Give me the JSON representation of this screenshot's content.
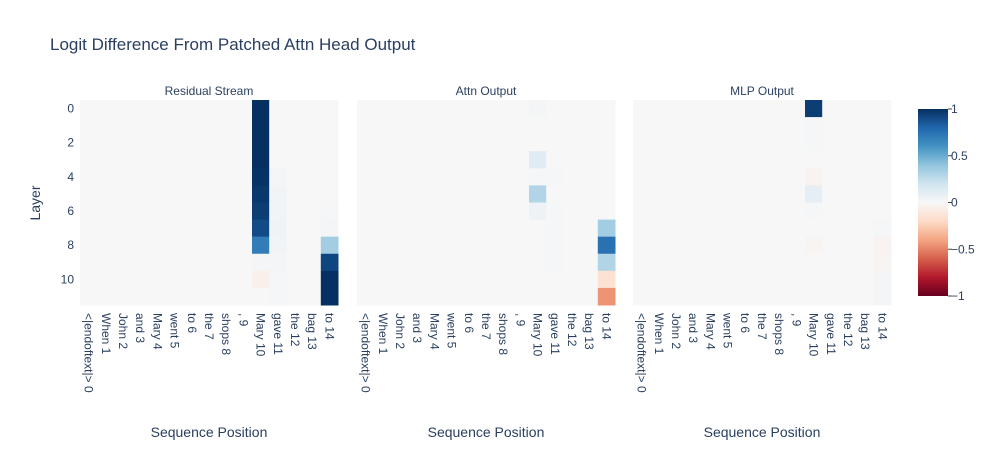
{
  "chart_data": {
    "type": "heatmap",
    "title": "Logit Difference From Patched Attn Head Output",
    "ylabel": "Layer",
    "y_ticks": [
      0,
      2,
      4,
      6,
      8,
      10
    ],
    "layers": [
      0,
      1,
      2,
      3,
      4,
      5,
      6,
      7,
      8,
      9,
      10,
      11
    ],
    "positions": [
      "<|endoftext|> 0",
      "When 1",
      "John 2",
      "and 3",
      "Mary 4",
      "went 5",
      "to 6",
      "the 7",
      "shops 8",
      ", 9",
      "Mary 10",
      "gave 11",
      "the 12",
      "bag 13",
      "to 14"
    ],
    "colorscale": {
      "name": "RdBu",
      "zmin": -1,
      "zmax": 1,
      "ticks": [
        1,
        0.5,
        0,
        -0.5,
        -1
      ],
      "tick_labels": [
        "1",
        "0.5",
        "0",
        "−0.5",
        "−1"
      ]
    },
    "panels": [
      {
        "title": "Residual Stream",
        "xlabel": "Sequence Position",
        "z": [
          [
            0,
            0,
            0,
            0,
            0,
            0,
            0,
            0,
            0,
            0,
            1,
            0,
            0,
            0,
            0
          ],
          [
            0,
            0,
            0,
            0,
            0,
            0,
            0,
            0,
            0,
            0,
            1,
            0,
            0,
            0,
            0
          ],
          [
            0,
            0,
            0,
            0,
            0,
            0,
            0,
            0,
            0,
            0,
            1,
            0,
            0,
            0,
            0
          ],
          [
            0,
            0,
            0,
            0,
            0,
            0,
            0,
            0,
            0,
            0,
            1,
            0,
            0,
            0,
            0
          ],
          [
            0,
            0,
            0,
            0,
            0,
            0,
            0,
            0,
            0,
            0,
            0.99,
            0.02,
            0,
            0,
            0
          ],
          [
            0,
            0,
            0,
            0,
            0,
            0,
            0,
            0,
            0,
            0,
            0.97,
            0.03,
            0,
            0,
            0
          ],
          [
            0,
            0,
            0,
            0,
            0,
            0,
            0,
            0,
            0,
            0,
            0.95,
            0.03,
            0,
            0,
            0.01
          ],
          [
            0,
            0,
            0,
            0,
            0,
            0,
            0,
            0,
            0,
            0,
            0.9,
            0.04,
            0,
            0,
            0.02
          ],
          [
            0,
            0,
            0,
            0,
            0,
            0,
            0,
            0,
            0,
            0,
            0.7,
            0.03,
            0,
            0,
            0.35
          ],
          [
            0,
            0,
            0,
            0,
            0,
            0,
            0,
            0,
            0,
            0,
            0.02,
            0.02,
            0,
            0,
            0.92
          ],
          [
            0,
            0,
            0,
            0,
            0,
            0,
            0,
            0,
            0,
            0,
            -0.05,
            0.01,
            0,
            0,
            1
          ],
          [
            0,
            0,
            0,
            0,
            0,
            0,
            0,
            0,
            0,
            0,
            0,
            0.01,
            0,
            0,
            1
          ]
        ]
      },
      {
        "title": "Attn Output",
        "xlabel": "Sequence Position",
        "z": [
          [
            0,
            0,
            0,
            0,
            0,
            0,
            0,
            0,
            0,
            0,
            0.02,
            0,
            0,
            0,
            0
          ],
          [
            0,
            0,
            0,
            0,
            0,
            0,
            0,
            0,
            0,
            0,
            0,
            0,
            0,
            0,
            0
          ],
          [
            0,
            0,
            0,
            0,
            0,
            0,
            0,
            0,
            0,
            0,
            0,
            0,
            0,
            0,
            0
          ],
          [
            0,
            0,
            0,
            0,
            0,
            0,
            0,
            0,
            0,
            0,
            0.12,
            0,
            0,
            0,
            0
          ],
          [
            0,
            0,
            0,
            0,
            0,
            0,
            0,
            0,
            0,
            0,
            0.01,
            0.01,
            0,
            0,
            0
          ],
          [
            0,
            0,
            0,
            0,
            0,
            0,
            0,
            0,
            0,
            0,
            0.3,
            0,
            0,
            0,
            0
          ],
          [
            0,
            0,
            0,
            0,
            0,
            0,
            0,
            0,
            0,
            0,
            0.06,
            0.01,
            0,
            0,
            0
          ],
          [
            0,
            0,
            0,
            0,
            0,
            0,
            0,
            0,
            0,
            0,
            0,
            0.01,
            0,
            0,
            0.35
          ],
          [
            0,
            0,
            0,
            0,
            0,
            0,
            0,
            0,
            0,
            0,
            0,
            0.01,
            0,
            0,
            0.75
          ],
          [
            0,
            0,
            0,
            0,
            0,
            0,
            0,
            0,
            0,
            0,
            0,
            0.01,
            0,
            0,
            0.3
          ],
          [
            0,
            0,
            0,
            0,
            0,
            0,
            0,
            0,
            0,
            0,
            0,
            0,
            0,
            0,
            -0.15
          ],
          [
            0,
            0,
            0,
            0,
            0,
            0,
            0,
            0,
            0,
            0,
            0,
            0,
            0,
            0,
            -0.45
          ]
        ]
      },
      {
        "title": "MLP Output",
        "xlabel": "Sequence Position",
        "z": [
          [
            0,
            0,
            0,
            0,
            0,
            0,
            0,
            0,
            0,
            0,
            0.95,
            0,
            0,
            0,
            0
          ],
          [
            0,
            0,
            0,
            0,
            0,
            0,
            0,
            0,
            0,
            0,
            0.01,
            0,
            0,
            0,
            0
          ],
          [
            0,
            0,
            0,
            0,
            0,
            0,
            0,
            0,
            0,
            0,
            0.01,
            0,
            0,
            0,
            0
          ],
          [
            0,
            0,
            0,
            0,
            0,
            0,
            0,
            0,
            0,
            0,
            0,
            0,
            0,
            0,
            0
          ],
          [
            0,
            0,
            0,
            0,
            0,
            0,
            0,
            0,
            0,
            0,
            -0.03,
            0,
            0,
            0,
            0
          ],
          [
            0,
            0,
            0,
            0,
            0,
            0,
            0,
            0,
            0,
            0,
            0.1,
            0,
            0,
            0,
            0
          ],
          [
            0,
            0,
            0,
            0,
            0,
            0,
            0,
            0,
            0,
            0,
            0.01,
            0,
            0,
            0,
            0
          ],
          [
            0,
            0,
            0,
            0,
            0,
            0,
            0,
            0,
            0,
            0,
            0,
            0,
            0,
            0,
            0.01
          ],
          [
            0,
            0,
            0,
            0,
            0,
            0,
            0,
            0,
            0,
            0,
            -0.02,
            0,
            0,
            0,
            -0.03
          ],
          [
            0,
            0,
            0,
            0,
            0,
            0,
            0,
            0,
            0,
            0,
            0,
            0,
            0,
            0,
            -0.02
          ],
          [
            0,
            0,
            0,
            0,
            0,
            0,
            0,
            0,
            0,
            0,
            0,
            0,
            0,
            0,
            0.02
          ],
          [
            0,
            0,
            0,
            0,
            0,
            0,
            0,
            0,
            0,
            0,
            0,
            0,
            0,
            0,
            0.02
          ]
        ]
      }
    ]
  }
}
